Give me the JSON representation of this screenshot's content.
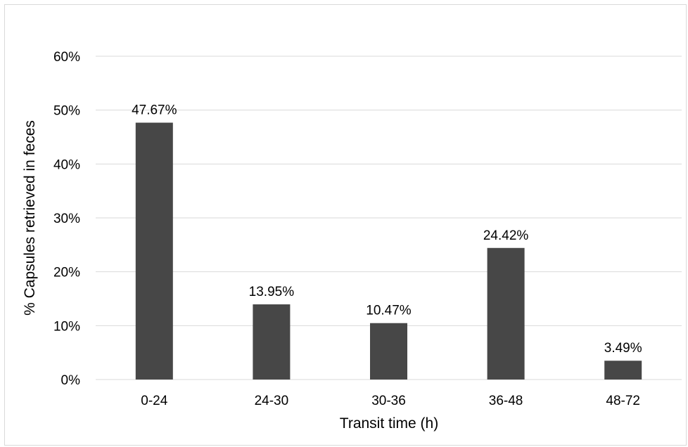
{
  "chart_data": {
    "type": "bar",
    "categories": [
      "0-24",
      "24-30",
      "30-36",
      "36-48",
      "48-72"
    ],
    "values": [
      47.67,
      13.95,
      10.47,
      24.42,
      3.49
    ],
    "data_labels": [
      "47.67%",
      "13.95%",
      "10.47%",
      "24.42%",
      "3.49%"
    ],
    "y_ticks": [
      "0%",
      "10%",
      "20%",
      "30%",
      "40%",
      "50%",
      "60%"
    ],
    "ylim": [
      0,
      60
    ],
    "xlabel": "Transit time (h)",
    "ylabel": "% Capsules retrieved in feces",
    "grid": true,
    "bar_color": "#474747",
    "grid_color": "#d9d9d9"
  }
}
